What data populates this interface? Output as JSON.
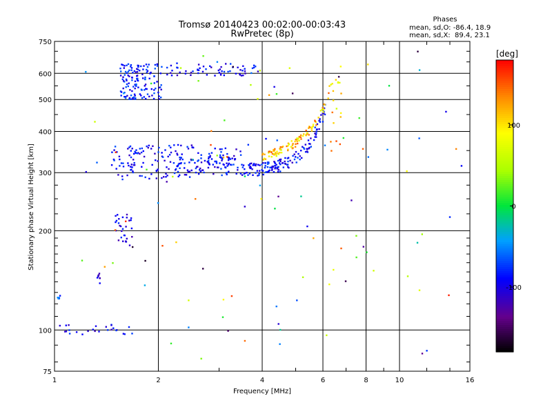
{
  "chart_data": {
    "type": "scatter",
    "title": "Tromsø 20140423 00:02:00-00:03:43",
    "subtitle": "RwPretec (8p)",
    "stats": {
      "heading": "Phases",
      "line_o": "mean, sd,O: -86.4, 18.9",
      "line_x": "mean, sd,X:  89.4, 23.1"
    },
    "xlabel": "Frequency [MHz]",
    "ylabel": "Stationary phase Virtual Height [km]",
    "xscale": "log",
    "yscale": "log",
    "xlim": [
      1,
      16
    ],
    "ylim": [
      75,
      750
    ],
    "grid": true,
    "x_ticks": [
      1,
      2,
      4,
      6,
      8,
      10,
      16
    ],
    "x_tick_labels": [
      "1",
      "2",
      "4",
      "6",
      "8",
      "10",
      "16"
    ],
    "y_ticks": [
      75,
      100,
      200,
      300,
      400,
      500,
      600,
      750
    ],
    "y_tick_labels": [
      "75",
      "100",
      "200",
      "300",
      "400",
      "500",
      "600",
      "750"
    ],
    "colorbar": {
      "label": "[deg]",
      "range": [
        -180,
        180
      ],
      "ticks": [
        100,
        0,
        -100
      ],
      "tick_labels": [
        "100",
        "0",
        "-100"
      ]
    },
    "point_groups": [
      {
        "name": "E-layer echoes ~100 km",
        "freq_range": [
          1.02,
          1.7
        ],
        "height_range": [
          97,
          104
        ],
        "phase": -95,
        "count": 26
      },
      {
        "name": "low-height trace 125 km",
        "freq_range": [
          1.02,
          1.04
        ],
        "height_range": [
          124,
          128
        ],
        "phase": -75,
        "count": 6
      },
      {
        "name": "trace 140-150 km",
        "freq_range": [
          1.33,
          1.36
        ],
        "height_range": [
          138,
          150
        ],
        "phase": -100,
        "count": 8
      },
      {
        "name": "Es-like trace 180-225 km",
        "freq_range": [
          1.5,
          1.68
        ],
        "height_range": [
          180,
          225
        ],
        "phase": -100,
        "count": 30
      },
      {
        "name": "F-layer O-mode trace",
        "freq_range": [
          1.45,
          6.1
        ],
        "height_range": [
          285,
          540
        ],
        "phase": -90,
        "count": 380
      },
      {
        "name": "F-layer X-mode trace",
        "freq_range": [
          4.0,
          6.8
        ],
        "height_range": [
          320,
          640
        ],
        "phase": 95,
        "count": 120
      },
      {
        "name": "spread echoes 500-640 km",
        "freq_range": [
          1.55,
          2.05
        ],
        "height_range": [
          500,
          640
        ],
        "phase": -85,
        "count": 140
      },
      {
        "name": "multi-hop trace 600 km",
        "freq_range": [
          2.1,
          3.9
        ],
        "height_range": [
          590,
          645
        ],
        "phase": -95,
        "count": 60
      },
      {
        "name": "scattered noise",
        "freq_range": [
          1.2,
          15.5
        ],
        "height_range": [
          80,
          720
        ],
        "phase": "mixed",
        "count": 110
      }
    ]
  }
}
